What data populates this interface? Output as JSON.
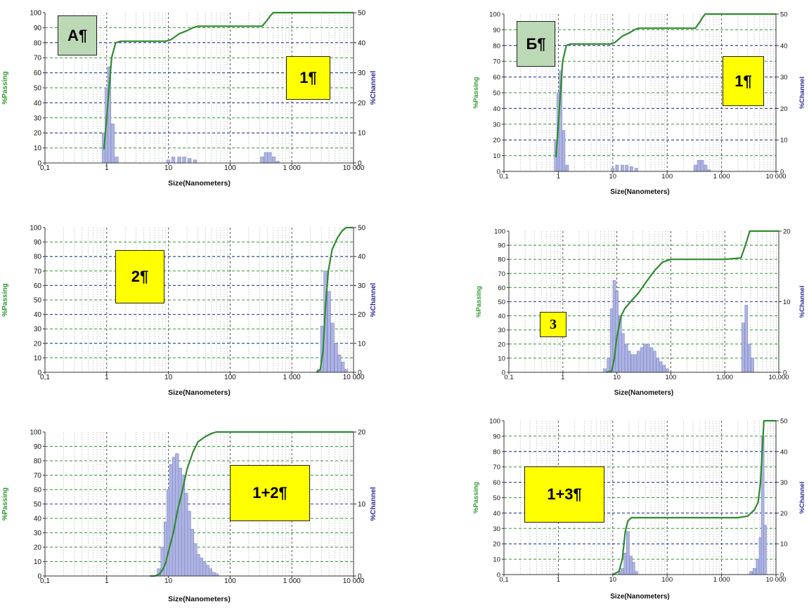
{
  "colors": {
    "passing_curve": "#2e8b2e",
    "bar_fill": "#aeb4e2",
    "bar_edge": "#7c84c6",
    "green_grid": "#2f9a2f",
    "blue_grid": "#3a3ab0",
    "vertical_grid": "#555555",
    "minor_grid": "#b8b8b8",
    "passing_axis_label": "#2e9a2e",
    "channel_axis_label": "#2f2f99",
    "tag_green": "#bcd9b6",
    "tag_yellow": "#ffff00"
  },
  "chart_data": [
    {
      "id": "panel-a1",
      "type": "bar",
      "tag": "А¶",
      "label": "1¶",
      "xlabel": "Size(Nanometers)",
      "ylabel_left": "%Passing",
      "ylabel_right": "%Channel",
      "xscale": "log",
      "xlim": [
        0.1,
        10000
      ],
      "x_ticks": [
        "0,1",
        "1",
        "10",
        "100",
        "1 000",
        "10 000"
      ],
      "ylim_left": [
        0,
        100
      ],
      "y_ticks_left": [
        "0",
        "10",
        "20",
        "30",
        "40",
        "50",
        "60",
        "70",
        "80",
        "90",
        "100"
      ],
      "ylim_right": [
        0,
        50
      ],
      "y_ticks_right": [
        "0",
        "10",
        "20",
        "30",
        "40",
        "50"
      ],
      "channel_bars": [
        [
          0.9,
          10
        ],
        [
          1.0,
          25
        ],
        [
          1.1,
          32
        ],
        [
          1.25,
          13
        ],
        [
          1.45,
          2
        ],
        [
          10,
          1
        ],
        [
          12,
          2
        ],
        [
          15,
          2
        ],
        [
          18,
          2
        ],
        [
          22,
          1.5
        ],
        [
          27,
          1
        ],
        [
          330,
          2
        ],
        [
          380,
          3.5
        ],
        [
          440,
          3.5
        ],
        [
          510,
          2
        ],
        [
          590,
          0.5
        ]
      ],
      "passing_curve": [
        [
          0.9,
          9
        ],
        [
          1.0,
          30
        ],
        [
          1.2,
          70
        ],
        [
          1.4,
          80
        ],
        [
          1.7,
          81
        ],
        [
          3,
          81
        ],
        [
          9,
          81
        ],
        [
          11,
          82
        ],
        [
          15,
          86
        ],
        [
          20,
          88
        ],
        [
          25,
          90
        ],
        [
          30,
          91
        ],
        [
          200,
          91
        ],
        [
          330,
          91
        ],
        [
          400,
          95
        ],
        [
          450,
          98
        ],
        [
          500,
          100
        ],
        [
          10000,
          100
        ]
      ]
    },
    {
      "id": "panel-b1",
      "type": "bar",
      "tag": "Б¶",
      "label": "1¶",
      "xlabel": "Size(Nanometers)",
      "ylabel_left": "%Passing",
      "ylabel_right": "%Channel",
      "xscale": "log",
      "xlim": [
        0.1,
        10000
      ],
      "x_ticks": [
        "0,1",
        "1",
        "10",
        "100",
        "1 000",
        "10 000"
      ],
      "ylim_left": [
        0,
        100
      ],
      "y_ticks_left": [
        "0",
        "10",
        "20",
        "30",
        "40",
        "50",
        "60",
        "70",
        "80",
        "90",
        "100"
      ],
      "ylim_right": [
        0,
        50
      ],
      "y_ticks_right": [
        "0",
        "10",
        "20",
        "30",
        "40",
        "50"
      ],
      "channel_bars": [
        [
          0.9,
          10
        ],
        [
          1.0,
          25
        ],
        [
          1.1,
          32
        ],
        [
          1.25,
          13
        ],
        [
          1.45,
          2
        ],
        [
          10,
          1
        ],
        [
          12,
          2
        ],
        [
          15,
          2
        ],
        [
          18,
          2
        ],
        [
          22,
          1.5
        ],
        [
          27,
          1
        ],
        [
          330,
          2
        ],
        [
          380,
          3.5
        ],
        [
          440,
          3.5
        ],
        [
          510,
          2
        ],
        [
          590,
          0.5
        ]
      ],
      "passing_curve": [
        [
          0.9,
          9
        ],
        [
          1.0,
          30
        ],
        [
          1.2,
          70
        ],
        [
          1.4,
          80
        ],
        [
          1.7,
          81
        ],
        [
          3,
          81
        ],
        [
          9,
          81
        ],
        [
          11,
          82
        ],
        [
          15,
          86
        ],
        [
          20,
          88
        ],
        [
          25,
          90
        ],
        [
          30,
          91
        ],
        [
          200,
          91
        ],
        [
          330,
          91
        ],
        [
          400,
          95
        ],
        [
          450,
          98
        ],
        [
          500,
          100
        ],
        [
          10000,
          100
        ]
      ]
    },
    {
      "id": "panel-2",
      "type": "bar",
      "tag": "",
      "label": "2¶",
      "xlabel": "Size(Nanometers)",
      "ylabel_left": "%Passing",
      "ylabel_right": "%Channel",
      "xscale": "log",
      "xlim": [
        0.1,
        10000
      ],
      "x_ticks": [
        "0,1",
        "1",
        "10",
        "100",
        "1 000",
        "10 000"
      ],
      "ylim_left": [
        0,
        100
      ],
      "y_ticks_left": [
        "0",
        "10",
        "20",
        "30",
        "40",
        "50",
        "60",
        "70",
        "80",
        "90",
        "100"
      ],
      "ylim_right": [
        0,
        50
      ],
      "y_ticks_right": [
        "0",
        "10",
        "20",
        "30",
        "40",
        "50"
      ],
      "channel_bars": [
        [
          2750,
          1
        ],
        [
          3100,
          16
        ],
        [
          3500,
          35
        ],
        [
          4000,
          28
        ],
        [
          4550,
          17
        ],
        [
          5200,
          10
        ],
        [
          5900,
          6
        ],
        [
          6700,
          3.5
        ],
        [
          7600,
          1
        ]
      ],
      "passing_curve": [
        [
          2500,
          0
        ],
        [
          2900,
          2
        ],
        [
          3200,
          15
        ],
        [
          3500,
          45
        ],
        [
          3900,
          70
        ],
        [
          4500,
          85
        ],
        [
          5500,
          93
        ],
        [
          6600,
          98
        ],
        [
          7600,
          100
        ],
        [
          10000,
          100
        ]
      ]
    },
    {
      "id": "panel-3",
      "type": "bar",
      "tag": "",
      "label": "3",
      "xlabel": "Size(Nanometers)",
      "ylabel_left": "%Passing",
      "ylabel_right": "%Channel",
      "xscale": "log",
      "xlim": [
        0.1,
        10000
      ],
      "x_ticks": [
        "0.1",
        "1",
        "10",
        "100",
        "1,000",
        "10,000"
      ],
      "ylim_left": [
        0,
        100
      ],
      "y_ticks_left": [
        "0",
        "10",
        "20",
        "30",
        "40",
        "50",
        "60",
        "70",
        "80",
        "90",
        "100"
      ],
      "ylim_right": [
        0,
        20
      ],
      "y_ticks_right": [
        "0",
        "10",
        "20"
      ],
      "channel_bars": [
        [
          6,
          0.5
        ],
        [
          7,
          2
        ],
        [
          8,
          9
        ],
        [
          9,
          13
        ],
        [
          10,
          11.5
        ],
        [
          11.5,
          8
        ],
        [
          13,
          5.5
        ],
        [
          15,
          4
        ],
        [
          17,
          3
        ],
        [
          19.5,
          2.5
        ],
        [
          22,
          2.5
        ],
        [
          25,
          3
        ],
        [
          29,
          3.5
        ],
        [
          33,
          4
        ],
        [
          38,
          4
        ],
        [
          44,
          3.5
        ],
        [
          50,
          3
        ],
        [
          57,
          2
        ],
        [
          65,
          1.5
        ],
        [
          75,
          1
        ],
        [
          86,
          0.5
        ],
        [
          2200,
          7
        ],
        [
          2500,
          9.5
        ],
        [
          2850,
          4
        ],
        [
          3250,
          2
        ]
      ],
      "passing_curve": [
        [
          6.5,
          0
        ],
        [
          8,
          1
        ],
        [
          9,
          10
        ],
        [
          10,
          25
        ],
        [
          12,
          40
        ],
        [
          14,
          45
        ],
        [
          18,
          50
        ],
        [
          25,
          56
        ],
        [
          35,
          64
        ],
        [
          50,
          72
        ],
        [
          70,
          78
        ],
        [
          100,
          80
        ],
        [
          200,
          80
        ],
        [
          1000,
          80
        ],
        [
          2000,
          81
        ],
        [
          2500,
          92
        ],
        [
          2900,
          100
        ],
        [
          10000,
          100
        ]
      ]
    },
    {
      "id": "panel-12",
      "type": "bar",
      "tag": "",
      "label": "1+2¶",
      "xlabel": "Size(Nanometers)",
      "ylabel_left": "%Passing",
      "ylabel_right": "%Channel",
      "xscale": "log",
      "xlim": [
        0.1,
        10000
      ],
      "x_ticks": [
        "0,1",
        "1",
        "10",
        "100",
        "1 000",
        "10 000"
      ],
      "ylim_left": [
        0,
        100
      ],
      "y_ticks_left": [
        "0",
        "10",
        "20",
        "30",
        "40",
        "50",
        "60",
        "70",
        "80",
        "90",
        "100"
      ],
      "ylim_right": [
        0,
        20
      ],
      "y_ticks_right": [
        "0",
        "10",
        "20"
      ],
      "channel_bars": [
        [
          7,
          1
        ],
        [
          8,
          4
        ],
        [
          9,
          7.5
        ],
        [
          10,
          12
        ],
        [
          11,
          15.5
        ],
        [
          12.3,
          16.5
        ],
        [
          13.8,
          17
        ],
        [
          15.5,
          15
        ],
        [
          17.3,
          14
        ],
        [
          19.4,
          11.5
        ],
        [
          21.7,
          9
        ],
        [
          24.3,
          6.5
        ],
        [
          27.2,
          4.5
        ],
        [
          30.5,
          3
        ],
        [
          34.2,
          2.5
        ],
        [
          38.3,
          2
        ],
        [
          43,
          1.5
        ],
        [
          48,
          1
        ],
        [
          54,
          0.5
        ],
        [
          61,
          0.3
        ]
      ],
      "passing_curve": [
        [
          5,
          0
        ],
        [
          6,
          0
        ],
        [
          7,
          1
        ],
        [
          8,
          4
        ],
        [
          9,
          9
        ],
        [
          10,
          17
        ],
        [
          12,
          30
        ],
        [
          14,
          45
        ],
        [
          17,
          60
        ],
        [
          20,
          74
        ],
        [
          25,
          86
        ],
        [
          30,
          93
        ],
        [
          40,
          97
        ],
        [
          50,
          99
        ],
        [
          60,
          100
        ],
        [
          10000,
          100
        ]
      ]
    },
    {
      "id": "panel-13",
      "type": "bar",
      "tag": "",
      "label": "1+3¶",
      "xlabel": "Size(Nanometers)",
      "ylabel_left": "%Passing",
      "ylabel_right": "%Channel",
      "xscale": "log",
      "xlim": [
        0.1,
        10000
      ],
      "x_ticks": [
        "0,1",
        "1",
        "10",
        "100",
        "1 000",
        "10 000"
      ],
      "ylim_left": [
        0,
        100
      ],
      "y_ticks_left": [
        "0",
        "10",
        "20",
        "30",
        "40",
        "50",
        "60",
        "70",
        "80",
        "90",
        "100"
      ],
      "ylim_right": [
        0,
        50
      ],
      "y_ticks_right": [
        "0",
        "10",
        "20",
        "30",
        "40",
        "50"
      ],
      "channel_bars": [
        [
          13.5,
          1
        ],
        [
          15,
          2
        ],
        [
          17,
          7
        ],
        [
          19,
          14
        ],
        [
          21.5,
          6
        ],
        [
          24,
          4
        ],
        [
          27,
          1
        ],
        [
          3500,
          1
        ],
        [
          4000,
          2
        ],
        [
          4600,
          5
        ],
        [
          5200,
          12
        ],
        [
          5700,
          45
        ],
        [
          6300,
          16
        ]
      ],
      "passing_curve": [
        [
          10,
          0
        ],
        [
          13,
          2
        ],
        [
          15,
          10
        ],
        [
          17,
          28
        ],
        [
          19,
          35
        ],
        [
          22,
          37
        ],
        [
          30,
          37
        ],
        [
          100,
          37
        ],
        [
          1000,
          37
        ],
        [
          2000,
          37
        ],
        [
          3000,
          38
        ],
        [
          4000,
          42
        ],
        [
          4700,
          47
        ],
        [
          5200,
          60
        ],
        [
          5700,
          85
        ],
        [
          6000,
          100
        ],
        [
          10000,
          100
        ]
      ]
    }
  ]
}
